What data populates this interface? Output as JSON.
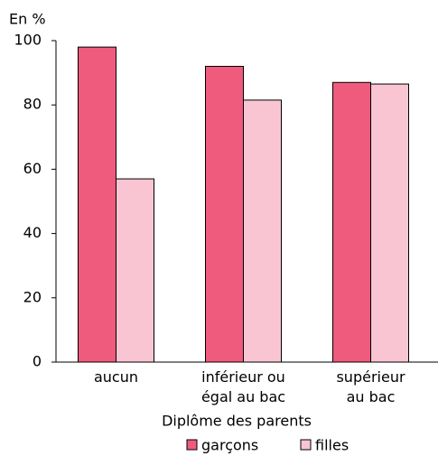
{
  "chart_data": {
    "type": "bar",
    "y_label": "En %",
    "x_label": "Diplôme des parents",
    "categories": [
      "aucun",
      "inférieur ou\négal au bac",
      "supérieur\nau bac"
    ],
    "series": [
      {
        "name": "garçons",
        "color": "#ef5b7d",
        "values": [
          98,
          92,
          87
        ]
      },
      {
        "name": "filles",
        "color": "#f9c5d2",
        "values": [
          57,
          81.5,
          86.5
        ]
      }
    ],
    "ylim": [
      0,
      100
    ],
    "yticks": [
      0,
      20,
      40,
      60,
      80,
      100
    ],
    "grid": false,
    "legend": "bottom"
  }
}
